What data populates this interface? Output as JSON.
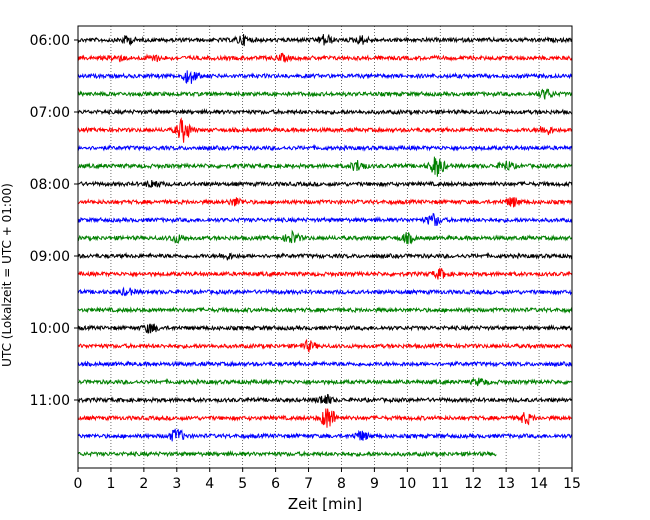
{
  "chart_data": {
    "type": "line",
    "title": "",
    "xlabel": "Zeit  [min]",
    "ylabel": "UTC (Lokalzeit = UTC + 01:00)",
    "xlim": [
      0,
      15
    ],
    "x_ticks": [
      0,
      1,
      2,
      3,
      4,
      5,
      6,
      7,
      8,
      9,
      10,
      11,
      12,
      13,
      14,
      15
    ],
    "x_tick_labels": [
      "0",
      "1",
      "2",
      "3",
      "4",
      "5",
      "6",
      "7",
      "8",
      "9",
      "10",
      "11",
      "12",
      "13",
      "14",
      "15"
    ],
    "y_tick_labels": [
      "06:00",
      "07:00",
      "08:00",
      "09:00",
      "10:00",
      "11:00"
    ],
    "grid": "vertical dotted",
    "colors": {
      "cycle": [
        "#000000",
        "#ff0000",
        "#0000ff",
        "#008000"
      ]
    },
    "series": [
      {
        "start": "06:00",
        "end_minute": 15,
        "color": "#000000",
        "events": [
          {
            "x": 1.5,
            "amp": 0.5
          },
          {
            "x": 5.0,
            "amp": 0.6
          },
          {
            "x": 7.5,
            "amp": 0.7
          },
          {
            "x": 8.6,
            "amp": 0.5
          }
        ]
      },
      {
        "start": "06:15",
        "end_minute": 15,
        "color": "#ff0000",
        "events": [
          {
            "x": 1.2,
            "amp": 0.4
          },
          {
            "x": 2.3,
            "amp": 0.4
          },
          {
            "x": 6.2,
            "amp": 0.4
          }
        ]
      },
      {
        "start": "06:30",
        "end_minute": 15,
        "color": "#0000ff",
        "events": [
          {
            "x": 3.4,
            "amp": 1.0
          }
        ]
      },
      {
        "start": "06:45",
        "end_minute": 15,
        "color": "#008000",
        "events": [
          {
            "x": 14.2,
            "amp": 0.6
          }
        ]
      },
      {
        "start": "07:00",
        "end_minute": 15,
        "color": "#000000",
        "events": []
      },
      {
        "start": "07:15",
        "end_minute": 15,
        "color": "#ff0000",
        "events": [
          {
            "x": 3.2,
            "amp": 1.6
          },
          {
            "x": 14.2,
            "amp": 0.6
          }
        ]
      },
      {
        "start": "07:30",
        "end_minute": 15,
        "color": "#0000ff",
        "events": []
      },
      {
        "start": "07:45",
        "end_minute": 15,
        "color": "#008000",
        "events": [
          {
            "x": 8.5,
            "amp": 0.7
          },
          {
            "x": 10.9,
            "amp": 1.4
          },
          {
            "x": 13.0,
            "amp": 0.6
          }
        ]
      },
      {
        "start": "08:00",
        "end_minute": 15,
        "color": "#000000",
        "events": [
          {
            "x": 2.3,
            "amp": 0.5
          }
        ]
      },
      {
        "start": "08:15",
        "end_minute": 15,
        "color": "#ff0000",
        "events": [
          {
            "x": 4.8,
            "amp": 0.5
          },
          {
            "x": 13.2,
            "amp": 0.6
          }
        ]
      },
      {
        "start": "08:30",
        "end_minute": 15,
        "color": "#0000ff",
        "events": [
          {
            "x": 10.8,
            "amp": 0.8
          }
        ]
      },
      {
        "start": "08:45",
        "end_minute": 15,
        "color": "#008000",
        "events": [
          {
            "x": 3.0,
            "amp": 0.5
          },
          {
            "x": 6.5,
            "amp": 0.8
          },
          {
            "x": 10.0,
            "amp": 0.6
          }
        ]
      },
      {
        "start": "09:00",
        "end_minute": 15,
        "color": "#000000",
        "events": [
          {
            "x": 4.5,
            "amp": 0.4
          }
        ]
      },
      {
        "start": "09:15",
        "end_minute": 15,
        "color": "#ff0000",
        "events": [
          {
            "x": 11.0,
            "amp": 0.6
          }
        ]
      },
      {
        "start": "09:30",
        "end_minute": 15,
        "color": "#0000ff",
        "events": [
          {
            "x": 1.5,
            "amp": 0.4
          }
        ]
      },
      {
        "start": "09:45",
        "end_minute": 15,
        "color": "#008000",
        "events": []
      },
      {
        "start": "10:00",
        "end_minute": 15,
        "color": "#000000",
        "events": [
          {
            "x": 2.2,
            "amp": 0.6
          }
        ]
      },
      {
        "start": "10:15",
        "end_minute": 15,
        "color": "#ff0000",
        "events": [
          {
            "x": 7.0,
            "amp": 0.6
          }
        ]
      },
      {
        "start": "10:30",
        "end_minute": 15,
        "color": "#0000ff",
        "events": []
      },
      {
        "start": "10:45",
        "end_minute": 15,
        "color": "#008000",
        "events": [
          {
            "x": 12.2,
            "amp": 0.4
          }
        ]
      },
      {
        "start": "11:00",
        "end_minute": 15,
        "color": "#000000",
        "events": [
          {
            "x": 7.5,
            "amp": 0.7
          }
        ]
      },
      {
        "start": "11:15",
        "end_minute": 15,
        "color": "#ff0000",
        "events": [
          {
            "x": 7.6,
            "amp": 1.6
          },
          {
            "x": 13.6,
            "amp": 0.7
          }
        ]
      },
      {
        "start": "11:30",
        "end_minute": 15,
        "color": "#0000ff",
        "events": [
          {
            "x": 3.0,
            "amp": 0.9
          },
          {
            "x": 8.6,
            "amp": 0.6
          }
        ]
      },
      {
        "start": "11:45",
        "end_minute": 12.7,
        "color": "#008000",
        "events": []
      }
    ]
  }
}
